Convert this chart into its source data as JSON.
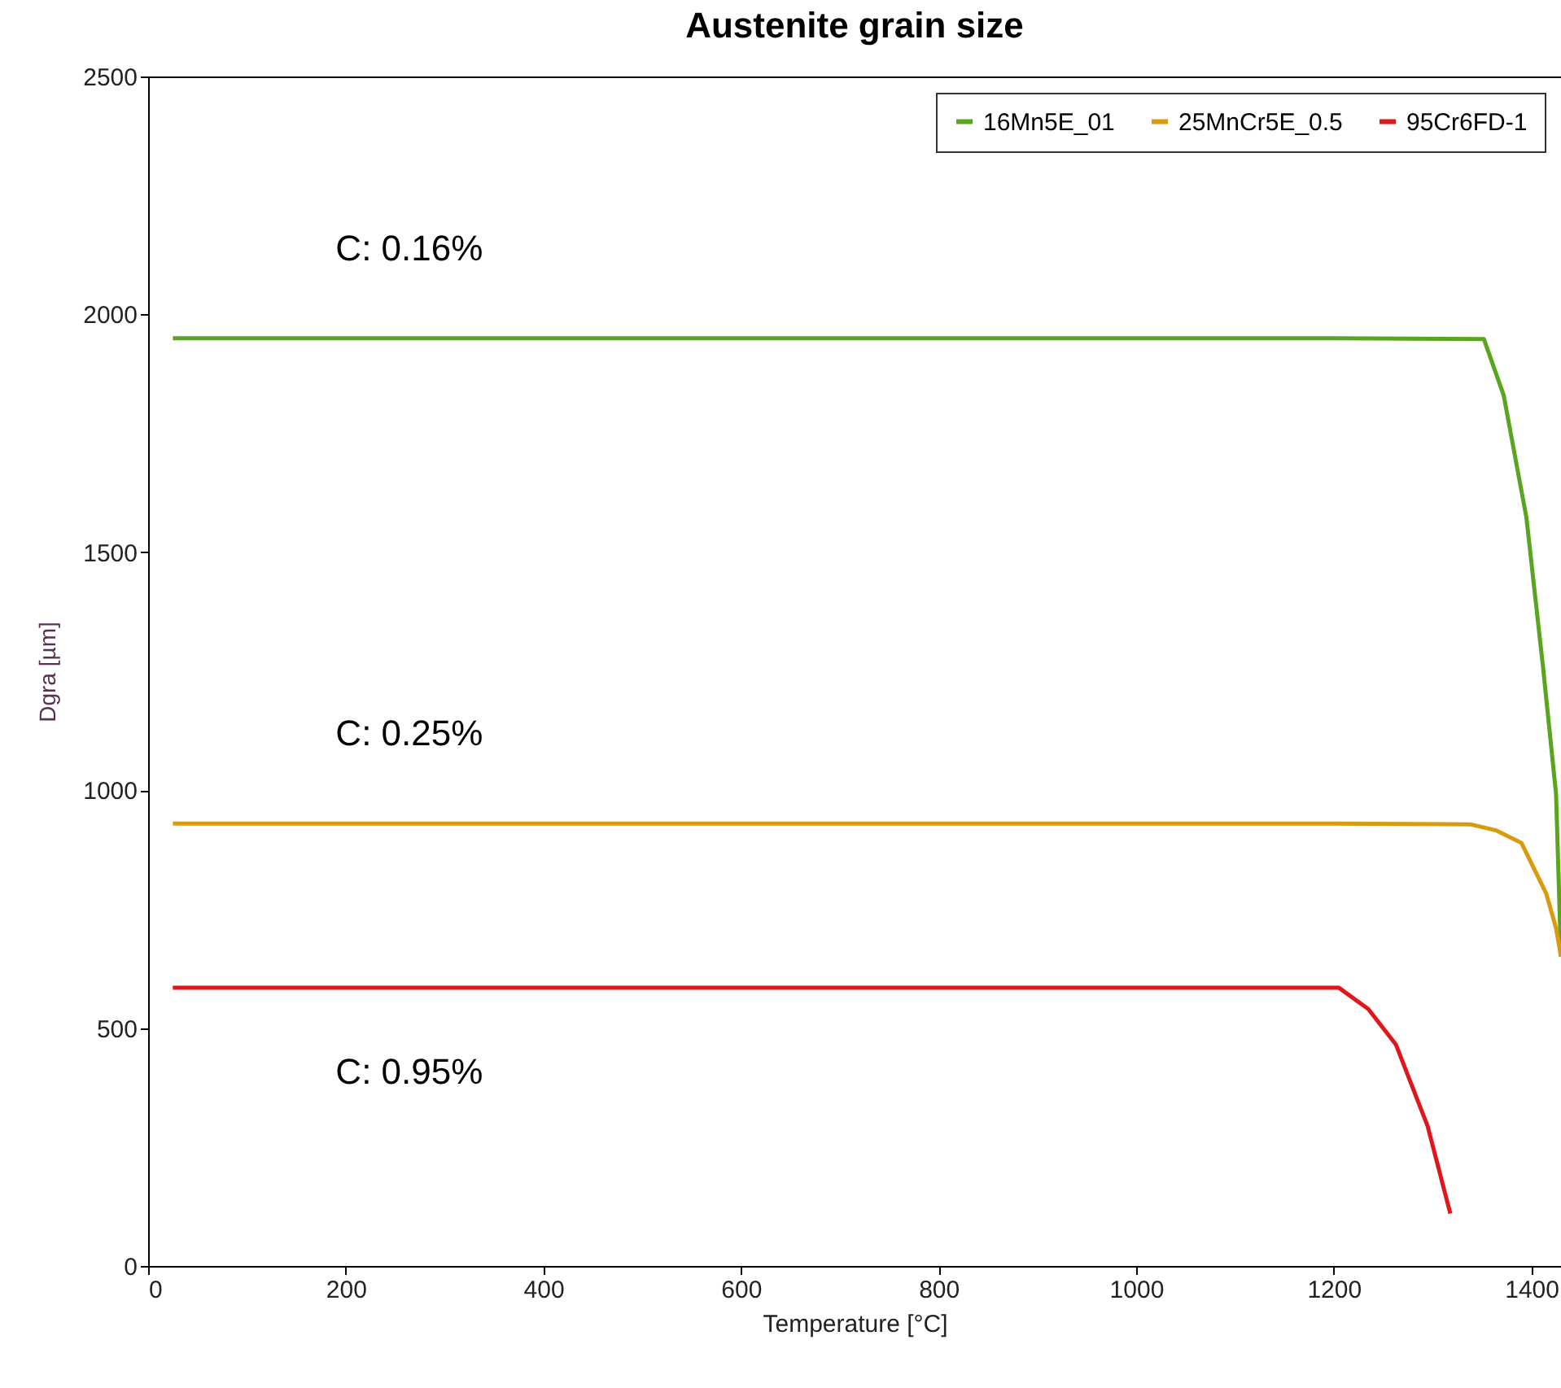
{
  "chart_data": {
    "type": "line",
    "title": "Austenite grain size",
    "xlabel": "Temperature [°C]",
    "ylabel": "Dgra [µm]",
    "xlim": [
      0,
      1430
    ],
    "xticks": [
      0,
      200,
      400,
      600,
      800,
      1000,
      1200,
      1400
    ],
    "ylim": [
      0,
      2500
    ],
    "yticks": [
      0,
      500,
      1000,
      1500,
      2000,
      2500
    ],
    "grid": false,
    "legend": "top right",
    "line_style": "solid",
    "series": [
      {
        "name": "16Mn5E_01",
        "color": "#5aa51e",
        "x": [
          25,
          400,
          800,
          1200,
          1352,
          1372,
          1395,
          1412,
          1425,
          1430
        ],
        "values": [
          1950,
          1950,
          1950,
          1950,
          1948,
          1830,
          1573,
          1255,
          992,
          650
        ]
      },
      {
        "name": "25MnCr5E_0.5",
        "color": "#d99a0e",
        "x": [
          25,
          400,
          800,
          1200,
          1339,
          1365,
          1390,
          1415,
          1425,
          1430
        ],
        "values": [
          930,
          930,
          930,
          930,
          928,
          915,
          889,
          783,
          710,
          650
        ]
      },
      {
        "name": "95Cr6FD-1",
        "color": "#e0161a",
        "x": [
          25,
          400,
          800,
          1205,
          1235,
          1263,
          1295,
          1318
        ],
        "values": [
          585,
          585,
          585,
          585,
          540,
          465,
          294,
          110
        ]
      }
    ],
    "annotations": [
      "C: 0.16%",
      "C: 0.25%",
      "C: 0.95%"
    ]
  }
}
